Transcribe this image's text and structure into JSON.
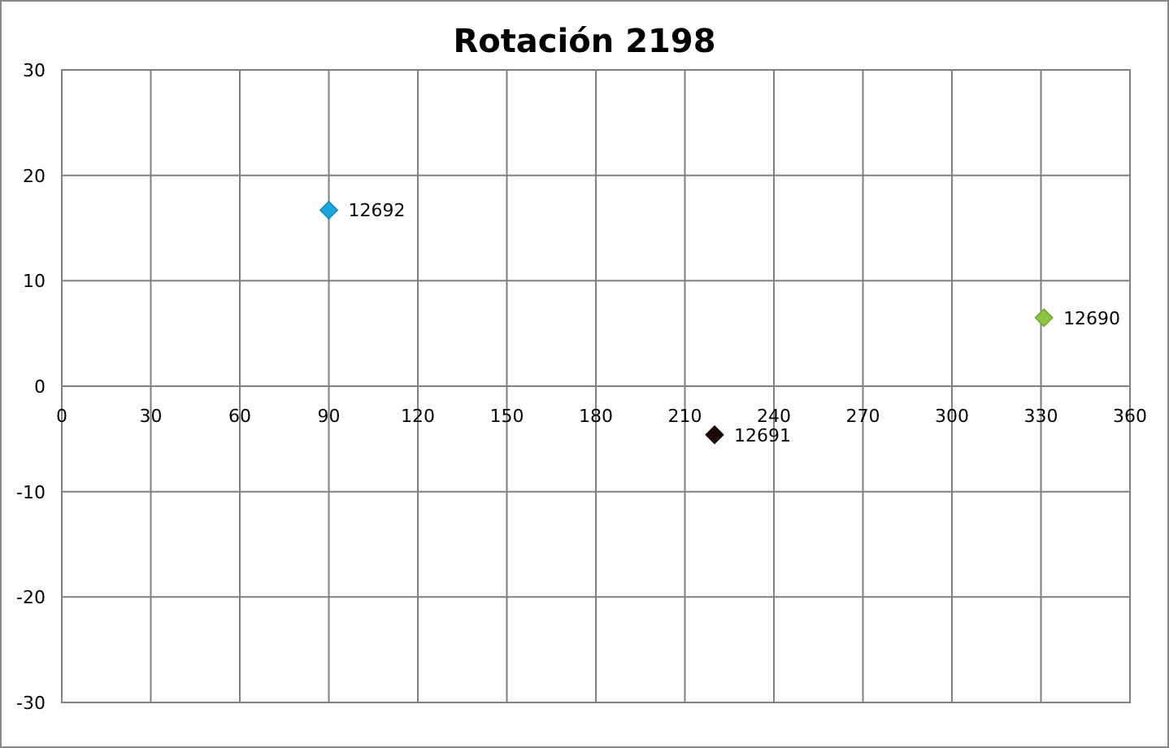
{
  "chart_data": {
    "type": "scatter",
    "title": "Rotación 2198",
    "marker": "diamond",
    "grid": true,
    "xlim": [
      0,
      360
    ],
    "xticks": [
      0,
      30,
      60,
      90,
      120,
      150,
      180,
      210,
      240,
      270,
      300,
      330,
      360
    ],
    "ylim": [
      -30,
      30
    ],
    "yticks": [
      -30,
      -20,
      -10,
      0,
      10,
      20,
      30
    ],
    "series": [
      {
        "name": "12692",
        "color": "#1aa8dc",
        "x": [
          90
        ],
        "values": [
          16.7
        ]
      },
      {
        "name": "12690",
        "color": "#8cc63f",
        "x": [
          331
        ],
        "values": [
          6.5
        ]
      },
      {
        "name": "12691",
        "color": "#1a0a0a",
        "x": [
          220
        ],
        "values": [
          -4.6
        ]
      }
    ]
  }
}
